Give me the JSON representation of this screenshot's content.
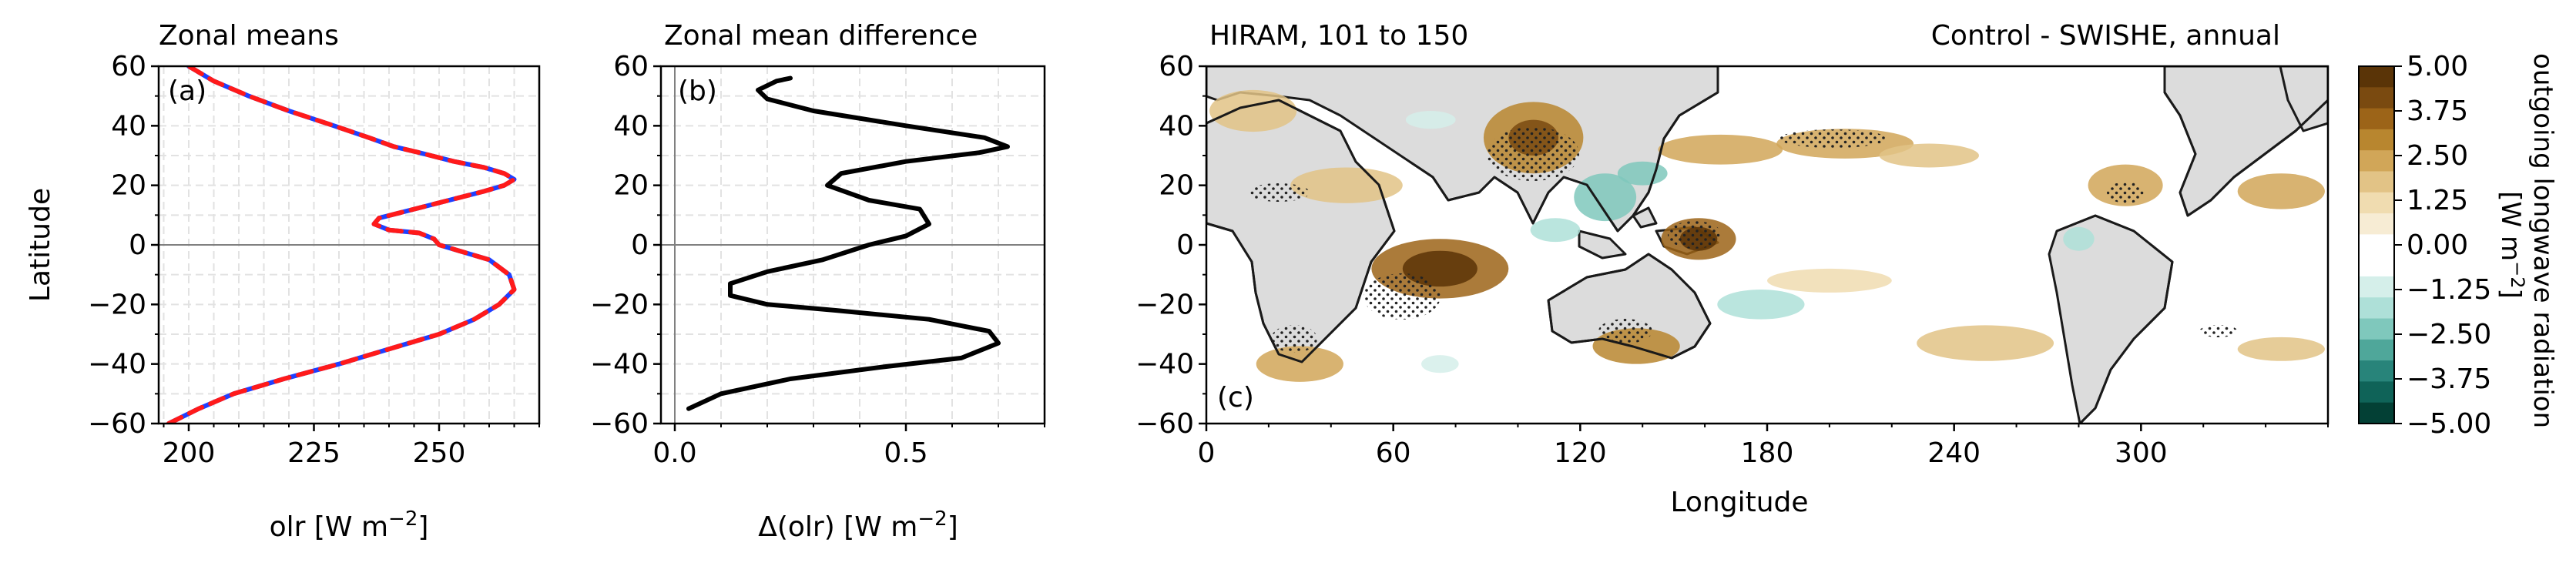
{
  "panel_a": {
    "title": "Zonal means",
    "label": "(a)",
    "ylabel": "Latitude",
    "xlabel_main": "olr [W m",
    "xlabel_exp": "−2",
    "xlabel_end": "]"
  },
  "panel_b": {
    "title": "Zonal mean difference",
    "label": "(b)",
    "xlabel_main": "Δ(olr) [W m",
    "xlabel_exp": "−2",
    "xlabel_end": "]"
  },
  "panel_c": {
    "title_left": "HIRAM, 101 to 150",
    "title_right": "Control - SWISHE, annual",
    "label": "(c)",
    "xlabel": "Longitude"
  },
  "colorbar": {
    "label_line1": "outgoing longwave radiation",
    "label_line2_main": "[W m",
    "label_line2_exp": "−2",
    "label_line2_end": "]",
    "ticks": [
      "5.00",
      "3.75",
      "2.50",
      "1.25",
      "0.00",
      "−1.25",
      "−2.50",
      "−3.75",
      "−5.00"
    ],
    "colors": [
      "#5a3407",
      "#7a4a10",
      "#9c6418",
      "#b8862f",
      "#d1a658",
      "#e2c386",
      "#f0dcb0",
      "#f7ecd4",
      "#ffffff",
      "#ffffff",
      "#d5efea",
      "#aee0d8",
      "#7fc8bc",
      "#4fa79a",
      "#28847a",
      "#0f6358",
      "#034035"
    ]
  },
  "chart_data": [
    {
      "type": "line",
      "title": "Zonal means",
      "xlabel": "olr [W m−2]",
      "ylabel": "Latitude",
      "xlim": [
        194,
        270
      ],
      "ylim": [
        -60,
        60
      ],
      "xticks": [
        200,
        225,
        250
      ],
      "yticks": [
        -60,
        -40,
        -20,
        0,
        20,
        40,
        60
      ],
      "grid": true,
      "series": [
        {
          "color": "#1f3fff",
          "style": "solid",
          "x": [
            196,
            202,
            209,
            219,
            230,
            240,
            250,
            257,
            262,
            265,
            264,
            260,
            254,
            250,
            249,
            246,
            240,
            237,
            238,
            245,
            252,
            259,
            263,
            265,
            263,
            259,
            253,
            246,
            241,
            236,
            229,
            220,
            212,
            205,
            200
          ],
          "y": [
            -60,
            -55,
            -50,
            -45,
            -40,
            -35,
            -30,
            -25,
            -20,
            -15,
            -10,
            -5,
            -2,
            0,
            2,
            4,
            5,
            7,
            9,
            12,
            15,
            18,
            20,
            22,
            24,
            26,
            28,
            31,
            33,
            36,
            40,
            45,
            50,
            55,
            60
          ]
        },
        {
          "color": "#ff1a1a",
          "style": "dashed",
          "x": [
            196,
            202,
            209,
            219,
            230,
            240,
            250,
            257,
            262,
            265,
            264,
            260,
            254,
            250,
            249,
            246,
            240,
            237,
            238,
            245,
            252,
            259,
            263,
            265,
            263,
            259,
            253,
            246,
            241,
            236,
            229,
            220,
            212,
            205,
            200
          ],
          "y": [
            -60,
            -55,
            -50,
            -45,
            -40,
            -35,
            -30,
            -25,
            -20,
            -15,
            -10,
            -5,
            -2,
            0,
            2,
            4,
            5,
            7,
            9,
            12,
            15,
            18,
            20,
            22,
            24,
            26,
            28,
            31,
            33,
            36,
            40,
            45,
            50,
            55,
            60
          ]
        }
      ]
    },
    {
      "type": "line",
      "title": "Zonal mean difference",
      "xlabel": "Δ(olr) [W m−2]",
      "xlim": [
        -0.03,
        0.8
      ],
      "ylim": [
        -60,
        60
      ],
      "xticks": [
        0.0,
        0.5
      ],
      "yticks": [
        -60,
        -40,
        -20,
        0,
        20,
        40,
        60
      ],
      "grid": true,
      "series": [
        {
          "color": "#000000",
          "style": "solid",
          "x": [
            0.03,
            0.1,
            0.25,
            0.45,
            0.62,
            0.7,
            0.68,
            0.55,
            0.35,
            0.2,
            0.12,
            0.12,
            0.2,
            0.32,
            0.42,
            0.5,
            0.55,
            0.53,
            0.42,
            0.33,
            0.36,
            0.5,
            0.66,
            0.72,
            0.67,
            0.5,
            0.3,
            0.2,
            0.18,
            0.22,
            0.25
          ],
          "y": [
            -55,
            -50,
            -45,
            -41,
            -38,
            -33,
            -29,
            -25,
            -22,
            -20,
            -17,
            -13,
            -9,
            -5,
            0,
            3,
            7,
            12,
            15,
            20,
            24,
            28,
            31,
            33,
            36,
            40,
            45,
            49,
            52,
            55,
            56
          ]
        }
      ]
    },
    {
      "type": "heatmap",
      "title": "HIRAM, 101 to 150 — Control - SWISHE, annual",
      "xlabel": "Longitude",
      "xlim": [
        0,
        360
      ],
      "ylim": [
        -60,
        60
      ],
      "xticks": [
        0,
        60,
        120,
        180,
        240,
        300
      ],
      "yticks": [
        -60,
        -40,
        -20,
        0,
        20,
        40,
        60
      ],
      "colorbar_range": [
        -5.0,
        5.0
      ],
      "features": [
        {
          "lon": 75,
          "lat": -8,
          "rx": 22,
          "ry": 10,
          "level": 3.5
        },
        {
          "lon": 75,
          "lat": -8,
          "rx": 12,
          "ry": 6,
          "level": 5.0
        },
        {
          "lon": 105,
          "lat": 36,
          "rx": 16,
          "ry": 12,
          "level": 3.0
        },
        {
          "lon": 105,
          "lat": 36,
          "rx": 8,
          "ry": 6,
          "level": 4.0
        },
        {
          "lon": 158,
          "lat": 2,
          "rx": 12,
          "ry": 7,
          "level": 3.5
        },
        {
          "lon": 158,
          "lat": 2,
          "rx": 6,
          "ry": 4,
          "level": 5.0
        },
        {
          "lon": 165,
          "lat": 32,
          "rx": 20,
          "ry": 5,
          "level": 2.2
        },
        {
          "lon": 205,
          "lat": 34,
          "rx": 22,
          "ry": 5,
          "level": 2.0
        },
        {
          "lon": 232,
          "lat": 30,
          "rx": 16,
          "ry": 4,
          "level": 1.5
        },
        {
          "lon": 295,
          "lat": 20,
          "rx": 12,
          "ry": 7,
          "level": 2.5
        },
        {
          "lon": 345,
          "lat": 18,
          "rx": 14,
          "ry": 6,
          "level": 2.0
        },
        {
          "lon": 30,
          "lat": -40,
          "rx": 14,
          "ry": 6,
          "level": 2.5
        },
        {
          "lon": 138,
          "lat": -34,
          "rx": 14,
          "ry": 6,
          "level": 3.0
        },
        {
          "lon": 250,
          "lat": -33,
          "rx": 22,
          "ry": 6,
          "level": 1.8
        },
        {
          "lon": 345,
          "lat": -35,
          "rx": 14,
          "ry": 4,
          "level": 1.5
        },
        {
          "lon": 45,
          "lat": 20,
          "rx": 18,
          "ry": 6,
          "level": 1.5
        },
        {
          "lon": 15,
          "lat": 45,
          "rx": 14,
          "ry": 7,
          "level": 1.5
        },
        {
          "lon": 200,
          "lat": -12,
          "rx": 20,
          "ry": 4,
          "level": 1.25
        },
        {
          "lon": 128,
          "lat": 16,
          "rx": 10,
          "ry": 8,
          "level": -2.5
        },
        {
          "lon": 140,
          "lat": 24,
          "rx": 8,
          "ry": 4,
          "level": -3.0
        },
        {
          "lon": 112,
          "lat": 5,
          "rx": 8,
          "ry": 4,
          "level": -2.0
        },
        {
          "lon": 178,
          "lat": -20,
          "rx": 14,
          "ry": 5,
          "level": -2.0
        },
        {
          "lon": 72,
          "lat": 42,
          "rx": 8,
          "ry": 3,
          "level": -1.5
        },
        {
          "lon": 280,
          "lat": 2,
          "rx": 5,
          "ry": 4,
          "level": -2.0
        },
        {
          "lon": 75,
          "lat": -40,
          "rx": 6,
          "ry": 3,
          "level": -1.5
        }
      ]
    }
  ]
}
